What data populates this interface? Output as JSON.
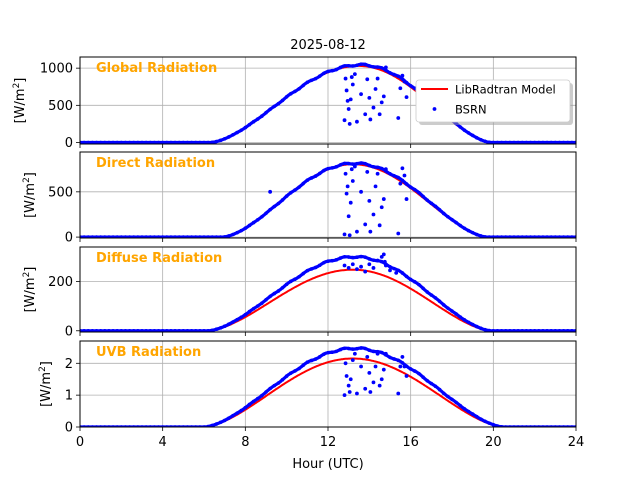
{
  "figure_title": "2025-08-12",
  "xlabel": "Hour (UTC)",
  "x_ticks": [
    "0",
    "4",
    "8",
    "12",
    "16",
    "20",
    "24"
  ],
  "legend": {
    "model": "LibRadtran Model",
    "obs": "BSRN"
  },
  "colors": {
    "model": "#ff0000",
    "obs": "#0000ff",
    "label": "#ffa500",
    "grid": "#b0b0b0"
  },
  "chart_data": [
    {
      "type": "line",
      "title": "Global Radiation",
      "ylabel": "[W/m2]",
      "ylabel_parts": {
        "base": "[W/m",
        "sup": "2",
        "close": "]"
      },
      "xlim": [
        0,
        24
      ],
      "ylim": [
        -20,
        1150
      ],
      "yticks": [
        0,
        500,
        1000
      ],
      "ytick_labels": [
        "0",
        "500",
        "1000"
      ],
      "sunrise": 6.3,
      "sunset": 19.9,
      "model_peak": 1030,
      "model_peak_hour": 13.5,
      "obs_peak": 1045,
      "obs_spikes_x": [
        12.8,
        12.85,
        12.9,
        13.0,
        13.05,
        13.1,
        13.2,
        13.3,
        13.4,
        13.6,
        13.8,
        13.9,
        14.0,
        14.05,
        14.2,
        14.3,
        14.4,
        14.5,
        14.6,
        14.7,
        14.8,
        15.4,
        15.5,
        15.6,
        15.7,
        15.8,
        12.95,
        13.15
      ],
      "obs_spikes_y": [
        300,
        860,
        700,
        450,
        250,
        580,
        780,
        920,
        280,
        650,
        380,
        850,
        600,
        310,
        470,
        720,
        860,
        380,
        540,
        620,
        1010,
        330,
        730,
        900,
        820,
        610,
        560,
        880
      ]
    },
    {
      "type": "line",
      "title": "Direct Radiation",
      "ylabel": "[W/m2]",
      "ylabel_parts": {
        "base": "[W/m",
        "sup": "2",
        "close": "]"
      },
      "xlim": [
        0,
        24
      ],
      "ylim": [
        -10,
        940
      ],
      "yticks": [
        0,
        500
      ],
      "ytick_labels": [
        "0",
        "500"
      ],
      "sunrise": 6.9,
      "sunset": 19.7,
      "model_peak": 805,
      "model_peak_hour": 13.2,
      "obs_peak": 815,
      "obs_spikes_x": [
        12.8,
        12.85,
        12.9,
        13.0,
        13.05,
        13.1,
        13.2,
        13.3,
        13.4,
        13.6,
        13.8,
        13.9,
        14.0,
        14.05,
        14.2,
        14.3,
        14.4,
        14.5,
        14.6,
        14.7,
        14.8,
        15.4,
        15.5,
        15.6,
        15.7,
        15.8,
        12.95,
        13.15,
        9.2
      ],
      "obs_spikes_y": [
        30,
        700,
        480,
        230,
        20,
        380,
        620,
        780,
        60,
        500,
        140,
        720,
        400,
        60,
        250,
        560,
        700,
        130,
        330,
        420,
        750,
        40,
        590,
        760,
        680,
        420,
        560,
        750,
        500
      ]
    },
    {
      "type": "line",
      "title": "Diffuse Radiation",
      "ylabel": "[W/m2]",
      "ylabel_parts": {
        "base": "[W/m",
        "sup": "2",
        "close": "]"
      },
      "xlim": [
        0,
        24
      ],
      "ylim": [
        -5,
        340
      ],
      "yticks": [
        0,
        200
      ],
      "ytick_labels": [
        "0",
        "200"
      ],
      "sunrise": 6.2,
      "sunset": 19.9,
      "model_peak": 248,
      "model_peak_hour": 13.2,
      "obs_peak": 300,
      "obs_spikes_x": [
        12.8,
        13.0,
        13.2,
        13.4,
        13.6,
        13.8,
        14.0,
        14.2,
        14.4,
        14.6,
        14.7,
        14.75,
        14.8,
        15.0,
        15.3
      ],
      "obs_spikes_y": [
        265,
        255,
        270,
        250,
        260,
        240,
        270,
        255,
        285,
        300,
        310,
        280,
        265,
        245,
        235
      ]
    },
    {
      "type": "line",
      "title": "UVB Radiation",
      "ylabel": "[W/m2]",
      "ylabel_parts": {
        "base": "[W/m",
        "sup": "2",
        "close": "]"
      },
      "xlim": [
        0,
        24
      ],
      "ylim": [
        0,
        2.7
      ],
      "yticks": [
        0,
        1,
        2
      ],
      "ytick_labels": [
        "0",
        "1",
        "2"
      ],
      "sunrise": 6.0,
      "sunset": 20.5,
      "model_peak": 2.15,
      "model_peak_hour": 13.2,
      "obs_peak": 2.47,
      "obs_spikes_x": [
        12.8,
        12.85,
        12.9,
        13.0,
        13.05,
        13.1,
        13.2,
        13.3,
        13.4,
        13.6,
        13.8,
        13.9,
        14.0,
        14.05,
        14.2,
        14.3,
        14.4,
        14.5,
        14.6,
        14.7,
        14.8,
        15.4,
        15.5,
        15.6,
        15.7,
        15.8
      ],
      "obs_spikes_y": [
        1.0,
        2.0,
        1.6,
        1.3,
        1.1,
        1.5,
        2.1,
        2.3,
        1.05,
        1.9,
        1.2,
        2.2,
        1.7,
        1.1,
        1.4,
        1.9,
        2.3,
        1.3,
        1.5,
        1.8,
        2.3,
        1.05,
        1.9,
        2.2,
        1.9,
        1.6
      ]
    }
  ]
}
